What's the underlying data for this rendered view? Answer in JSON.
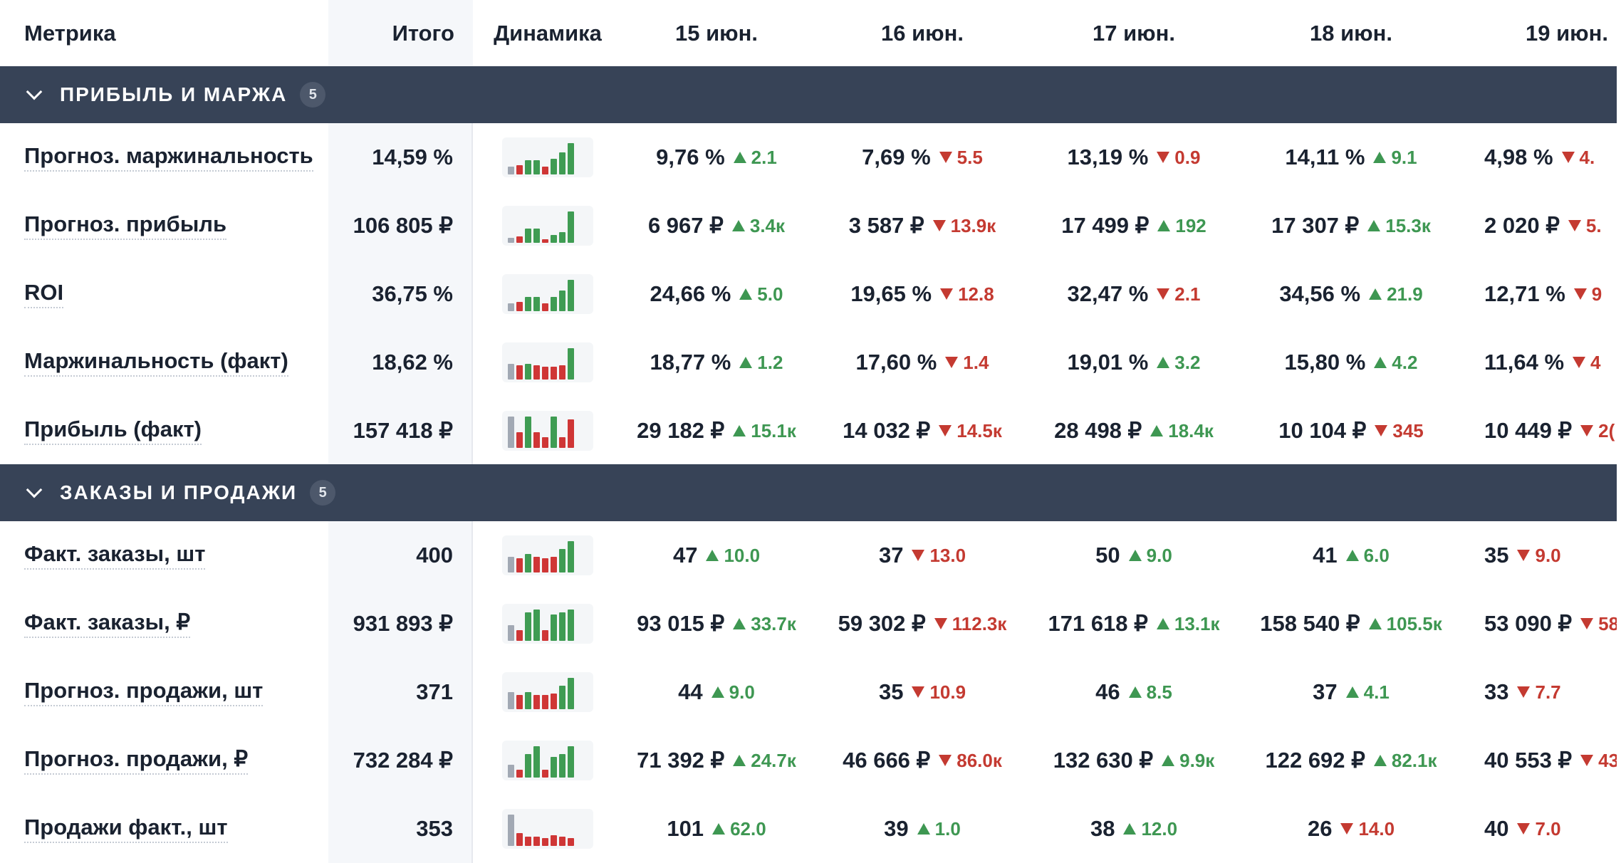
{
  "header": {
    "metric": "Метрика",
    "total": "Итого",
    "dynamics": "Динамика",
    "days": [
      "15 июн.",
      "16 июн.",
      "17 июн.",
      "18 июн.",
      "19 июн."
    ]
  },
  "colors": {
    "up": "#3e9752",
    "down": "#c43a31",
    "group_bg": "#374357"
  },
  "groups": [
    {
      "title": "ПРИБЫЛЬ И МАРЖА",
      "count": "5",
      "icon": "chevron-down-icon",
      "rows": [
        {
          "name": "Прогноз. маржинальность",
          "total": "14,59 %",
          "spark": [
            {
              "h": 0.25,
              "t": "first"
            },
            {
              "h": 0.3,
              "t": "down"
            },
            {
              "h": 0.45,
              "t": "up"
            },
            {
              "h": 0.45,
              "t": "up"
            },
            {
              "h": 0.25,
              "t": "down"
            },
            {
              "h": 0.5,
              "t": "up"
            },
            {
              "h": 0.7,
              "t": "up"
            },
            {
              "h": 1.0,
              "t": "up"
            }
          ],
          "days": [
            {
              "value": "9,76 %",
              "dir": "up",
              "delta": "2.1"
            },
            {
              "value": "7,69 %",
              "dir": "down",
              "delta": "5.5"
            },
            {
              "value": "13,19 %",
              "dir": "down",
              "delta": "0.9"
            },
            {
              "value": "14,11 %",
              "dir": "up",
              "delta": "9.1"
            },
            {
              "value": "4,98 %",
              "dir": "down",
              "delta": "4."
            }
          ]
        },
        {
          "name": "Прогноз. прибыль",
          "total": "106 805 ₽",
          "spark": [
            {
              "h": 0.15,
              "t": "first"
            },
            {
              "h": 0.2,
              "t": "down"
            },
            {
              "h": 0.45,
              "t": "up"
            },
            {
              "h": 0.45,
              "t": "up"
            },
            {
              "h": 0.12,
              "t": "down"
            },
            {
              "h": 0.25,
              "t": "up"
            },
            {
              "h": 0.35,
              "t": "up"
            },
            {
              "h": 1.0,
              "t": "up"
            }
          ],
          "days": [
            {
              "value": "6 967 ₽",
              "dir": "up",
              "delta": "3.4к"
            },
            {
              "value": "3 587 ₽",
              "dir": "down",
              "delta": "13.9к"
            },
            {
              "value": "17 499 ₽",
              "dir": "up",
              "delta": "192"
            },
            {
              "value": "17 307 ₽",
              "dir": "up",
              "delta": "15.3к"
            },
            {
              "value": "2 020 ₽",
              "dir": "down",
              "delta": "5."
            }
          ]
        },
        {
          "name": "ROI",
          "total": "36,75 %",
          "spark": [
            {
              "h": 0.25,
              "t": "first"
            },
            {
              "h": 0.3,
              "t": "down"
            },
            {
              "h": 0.45,
              "t": "up"
            },
            {
              "h": 0.45,
              "t": "up"
            },
            {
              "h": 0.25,
              "t": "down"
            },
            {
              "h": 0.45,
              "t": "up"
            },
            {
              "h": 0.65,
              "t": "up"
            },
            {
              "h": 1.0,
              "t": "up"
            }
          ],
          "days": [
            {
              "value": "24,66 %",
              "dir": "up",
              "delta": "5.0"
            },
            {
              "value": "19,65 %",
              "dir": "down",
              "delta": "12.8"
            },
            {
              "value": "32,47 %",
              "dir": "down",
              "delta": "2.1"
            },
            {
              "value": "34,56 %",
              "dir": "up",
              "delta": "21.9"
            },
            {
              "value": "12,71 %",
              "dir": "down",
              "delta": "9"
            }
          ]
        },
        {
          "name": "Маржинальность (факт)",
          "total": "18,62 %",
          "spark": [
            {
              "h": 0.5,
              "t": "first"
            },
            {
              "h": 0.45,
              "t": "down"
            },
            {
              "h": 0.5,
              "t": "up"
            },
            {
              "h": 0.45,
              "t": "down"
            },
            {
              "h": 0.4,
              "t": "down"
            },
            {
              "h": 0.4,
              "t": "down"
            },
            {
              "h": 0.45,
              "t": "down"
            },
            {
              "h": 1.0,
              "t": "up"
            }
          ],
          "days": [
            {
              "value": "18,77 %",
              "dir": "up",
              "delta": "1.2"
            },
            {
              "value": "17,60 %",
              "dir": "down",
              "delta": "1.4"
            },
            {
              "value": "19,01 %",
              "dir": "up",
              "delta": "3.2"
            },
            {
              "value": "15,80 %",
              "dir": "up",
              "delta": "4.2"
            },
            {
              "value": "11,64 %",
              "dir": "down",
              "delta": "4"
            }
          ]
        },
        {
          "name": "Прибыль (факт)",
          "total": "157 418 ₽",
          "spark": [
            {
              "h": 1.0,
              "t": "first"
            },
            {
              "h": 0.5,
              "t": "down"
            },
            {
              "h": 1.0,
              "t": "up"
            },
            {
              "h": 0.5,
              "t": "down"
            },
            {
              "h": 0.35,
              "t": "down"
            },
            {
              "h": 1.0,
              "t": "up"
            },
            {
              "h": 0.35,
              "t": "down"
            },
            {
              "h": 0.9,
              "t": "down"
            }
          ],
          "days": [
            {
              "value": "29 182 ₽",
              "dir": "up",
              "delta": "15.1к"
            },
            {
              "value": "14 032 ₽",
              "dir": "down",
              "delta": "14.5к"
            },
            {
              "value": "28 498 ₽",
              "dir": "up",
              "delta": "18.4к"
            },
            {
              "value": "10 104 ₽",
              "dir": "down",
              "delta": "345"
            },
            {
              "value": "10 449 ₽",
              "dir": "down",
              "delta": "2("
            }
          ]
        }
      ]
    },
    {
      "title": "ЗАКАЗЫ И ПРОДАЖИ",
      "count": "5",
      "icon": "chevron-down-icon",
      "rows": [
        {
          "name": "Факт. заказы, шт",
          "total": "400",
          "spark": [
            {
              "h": 0.5,
              "t": "first"
            },
            {
              "h": 0.45,
              "t": "down"
            },
            {
              "h": 0.6,
              "t": "up"
            },
            {
              "h": 0.5,
              "t": "down"
            },
            {
              "h": 0.45,
              "t": "down"
            },
            {
              "h": 0.5,
              "t": "down"
            },
            {
              "h": 0.75,
              "t": "up"
            },
            {
              "h": 1.0,
              "t": "up"
            }
          ],
          "days": [
            {
              "value": "47",
              "dir": "up",
              "delta": "10.0"
            },
            {
              "value": "37",
              "dir": "down",
              "delta": "13.0"
            },
            {
              "value": "50",
              "dir": "up",
              "delta": "9.0"
            },
            {
              "value": "41",
              "dir": "up",
              "delta": "6.0"
            },
            {
              "value": "35",
              "dir": "down",
              "delta": "9.0"
            }
          ]
        },
        {
          "name": "Факт. заказы, ₽",
          "total": "931 893 ₽",
          "spark": [
            {
              "h": 0.5,
              "t": "first"
            },
            {
              "h": 0.35,
              "t": "down"
            },
            {
              "h": 0.9,
              "t": "up"
            },
            {
              "h": 1.0,
              "t": "up"
            },
            {
              "h": 0.35,
              "t": "down"
            },
            {
              "h": 0.85,
              "t": "up"
            },
            {
              "h": 0.9,
              "t": "up"
            },
            {
              "h": 1.0,
              "t": "up"
            }
          ],
          "days": [
            {
              "value": "93 015 ₽",
              "dir": "up",
              "delta": "33.7к"
            },
            {
              "value": "59 302 ₽",
              "dir": "down",
              "delta": "112.3к"
            },
            {
              "value": "171 618 ₽",
              "dir": "up",
              "delta": "13.1к"
            },
            {
              "value": "158 540 ₽",
              "dir": "up",
              "delta": "105.5к"
            },
            {
              "value": "53 090 ₽",
              "dir": "down",
              "delta": "58"
            }
          ]
        },
        {
          "name": "Прогноз. продажи, шт",
          "total": "371",
          "spark": [
            {
              "h": 0.55,
              "t": "first"
            },
            {
              "h": 0.45,
              "t": "down"
            },
            {
              "h": 0.55,
              "t": "up"
            },
            {
              "h": 0.45,
              "t": "down"
            },
            {
              "h": 0.45,
              "t": "down"
            },
            {
              "h": 0.5,
              "t": "down"
            },
            {
              "h": 0.75,
              "t": "up"
            },
            {
              "h": 1.0,
              "t": "up"
            }
          ],
          "days": [
            {
              "value": "44",
              "dir": "up",
              "delta": "9.0"
            },
            {
              "value": "35",
              "dir": "down",
              "delta": "10.9"
            },
            {
              "value": "46",
              "dir": "up",
              "delta": "8.5"
            },
            {
              "value": "37",
              "dir": "up",
              "delta": "4.1"
            },
            {
              "value": "33",
              "dir": "down",
              "delta": "7.7"
            }
          ]
        },
        {
          "name": "Прогноз. продажи, ₽",
          "total": "732 284 ₽",
          "spark": [
            {
              "h": 0.4,
              "t": "first"
            },
            {
              "h": 0.25,
              "t": "down"
            },
            {
              "h": 0.75,
              "t": "up"
            },
            {
              "h": 1.0,
              "t": "up"
            },
            {
              "h": 0.25,
              "t": "down"
            },
            {
              "h": 0.65,
              "t": "up"
            },
            {
              "h": 0.75,
              "t": "up"
            },
            {
              "h": 1.0,
              "t": "up"
            }
          ],
          "days": [
            {
              "value": "71 392 ₽",
              "dir": "up",
              "delta": "24.7к"
            },
            {
              "value": "46 666 ₽",
              "dir": "down",
              "delta": "86.0к"
            },
            {
              "value": "132 630 ₽",
              "dir": "up",
              "delta": "9.9к"
            },
            {
              "value": "122 692 ₽",
              "dir": "up",
              "delta": "82.1к"
            },
            {
              "value": "40 553 ₽",
              "dir": "down",
              "delta": "43"
            }
          ]
        },
        {
          "name": "Продажи факт., шт",
          "total": "353",
          "spark": [
            {
              "h": 1.0,
              "t": "first"
            },
            {
              "h": 0.4,
              "t": "down"
            },
            {
              "h": 0.3,
              "t": "down"
            },
            {
              "h": 0.3,
              "t": "down"
            },
            {
              "h": 0.25,
              "t": "down"
            },
            {
              "h": 0.35,
              "t": "down"
            },
            {
              "h": 0.3,
              "t": "down"
            },
            {
              "h": 0.25,
              "t": "down"
            }
          ],
          "days": [
            {
              "value": "101",
              "dir": "up",
              "delta": "62.0"
            },
            {
              "value": "39",
              "dir": "up",
              "delta": "1.0"
            },
            {
              "value": "38",
              "dir": "up",
              "delta": "12.0"
            },
            {
              "value": "26",
              "dir": "down",
              "delta": "14.0"
            },
            {
              "value": "40",
              "dir": "down",
              "delta": "7.0"
            }
          ]
        }
      ]
    }
  ]
}
